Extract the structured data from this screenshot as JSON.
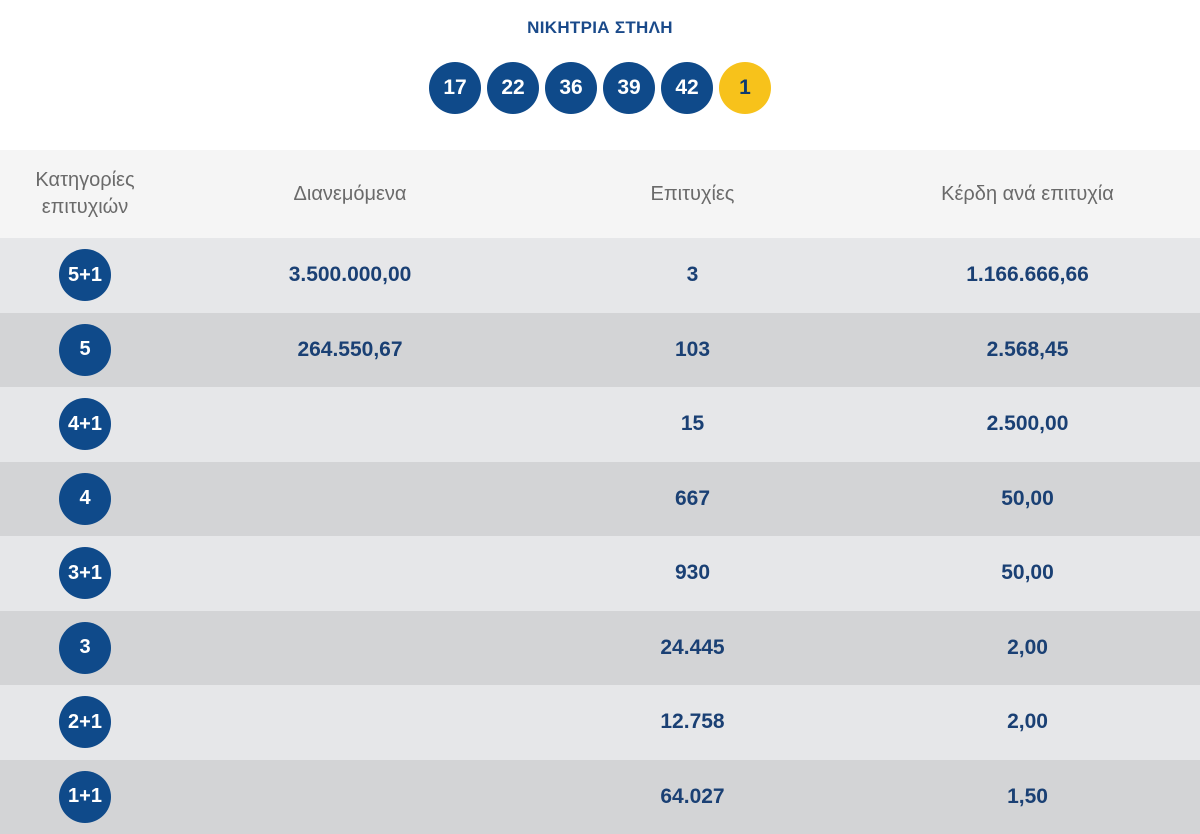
{
  "header": {
    "title": "ΝΙΚΗΤΡΙΑ ΣΤΗΛΗ",
    "numbers": [
      "17",
      "22",
      "36",
      "39",
      "42"
    ],
    "joker": "1"
  },
  "table": {
    "columns": {
      "category_line1": "Κατηγορίες",
      "category_line2": "επιτυχιών",
      "distributed": "Διανεμόμενα",
      "winners": "Επιτυχίες",
      "prize": "Κέρδη ανά επιτυχία"
    },
    "rows": [
      {
        "category": "5+1",
        "distributed": "3.500.000,00",
        "winners": "3",
        "prize": "1.166.666,66"
      },
      {
        "category": "5",
        "distributed": "264.550,67",
        "winners": "103",
        "prize": "2.568,45"
      },
      {
        "category": "4+1",
        "distributed": "",
        "winners": "15",
        "prize": "2.500,00"
      },
      {
        "category": "4",
        "distributed": "",
        "winners": "667",
        "prize": "50,00"
      },
      {
        "category": "3+1",
        "distributed": "",
        "winners": "930",
        "prize": "50,00"
      },
      {
        "category": "3",
        "distributed": "",
        "winners": "24.445",
        "prize": "2,00"
      },
      {
        "category": "2+1",
        "distributed": "",
        "winners": "12.758",
        "prize": "2,00"
      },
      {
        "category": "1+1",
        "distributed": "",
        "winners": "64.027",
        "prize": "1,50"
      }
    ]
  },
  "colors": {
    "ball_blue": "#0f4a8a",
    "joker_yellow": "#f7c21b",
    "text_navy": "#1a4074"
  }
}
